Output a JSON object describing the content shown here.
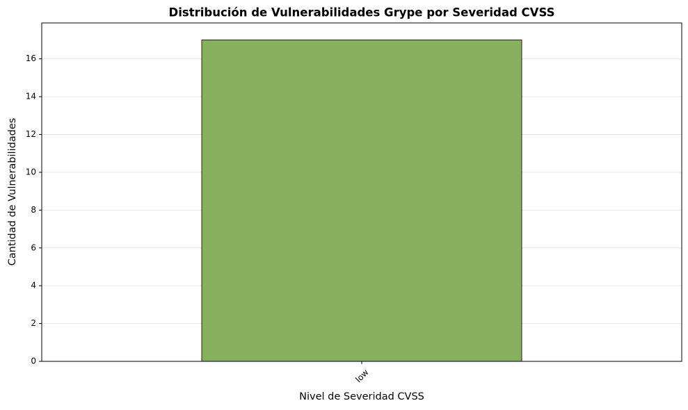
{
  "chart_data": {
    "type": "bar",
    "title": "Distribución de Vulnerabilidades Grype por Severidad CVSS",
    "x_label": "Nivel de Severidad CVSS",
    "y_label": "Cantidad de Vulnerabilidades",
    "categories": [
      "low"
    ],
    "values": [
      17
    ],
    "color": "#86b05e",
    "ylim": [
      0,
      17.9
    ],
    "yticks": [
      0,
      2,
      4,
      6,
      8,
      10,
      12,
      14,
      16
    ],
    "grid": true
  }
}
